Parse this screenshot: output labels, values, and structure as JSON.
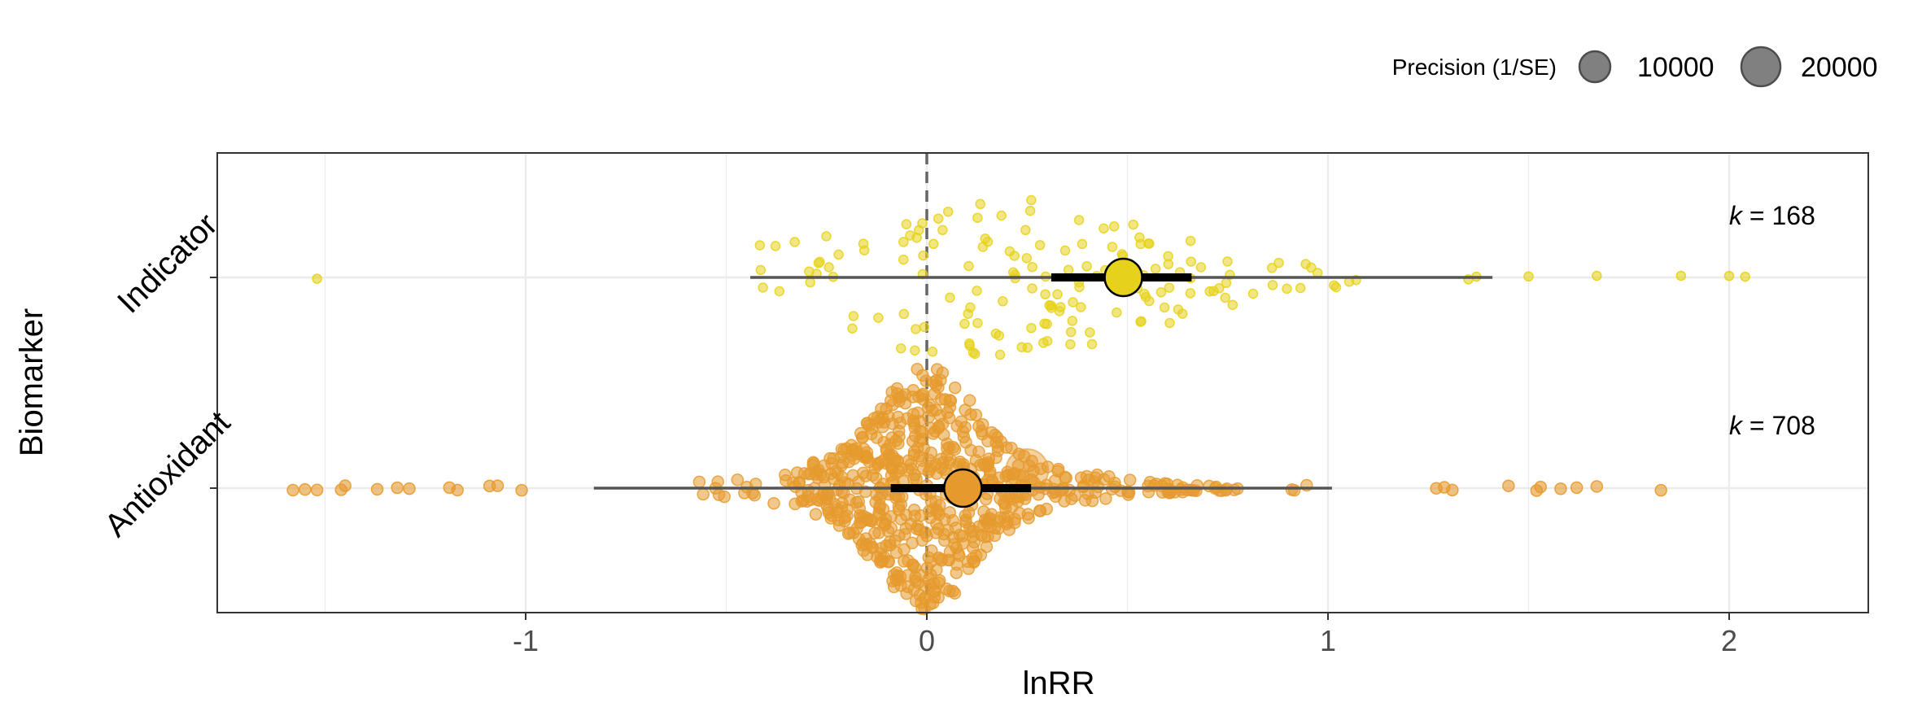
{
  "chart_data": {
    "type": "scatter",
    "title": "",
    "xlabel": "lnRR",
    "ylabel": "Biomarker",
    "xlim": [
      -1.8,
      2.42
    ],
    "x_ticks": [
      -1,
      0,
      1,
      2
    ],
    "x_tick_labels": [
      "-1",
      "0",
      "1",
      "2"
    ],
    "grid": true,
    "reference_line": {
      "x": 0,
      "style": "dashed"
    },
    "legend": {
      "title": "Precision (1/SE)",
      "position": "top-right",
      "entries": [
        {
          "label": "10000",
          "value": 10000
        },
        {
          "label": "20000",
          "value": 20000
        }
      ]
    },
    "categories": [
      "Indicator",
      "Antioxidant"
    ],
    "series": [
      {
        "name": "Indicator",
        "color": "#E6D21A",
        "point_color": "#E6D21A",
        "k_prefix": "k",
        "k_text": " = 168",
        "k": 168,
        "estimate": 0.49,
        "ci": [
          0.31,
          0.66
        ],
        "pi": [
          -0.44,
          1.41
        ],
        "outlier_points": [
          -1.52,
          1.5,
          1.67,
          1.88,
          2.0,
          2.04,
          1.35,
          1.37
        ],
        "dense_range": [
          -0.42,
          1.1
        ],
        "dense_peak": 0.2,
        "dense_spread": 0.55
      },
      {
        "name": "Antioxidant",
        "color": "#E69A2E",
        "point_color": "#E69A2E",
        "k_prefix": "k",
        "k_text": " = 708",
        "k": 708,
        "estimate": 0.09,
        "ci": [
          -0.09,
          0.26
        ],
        "pi": [
          -0.83,
          1.01
        ],
        "outlier_points": [
          -1.58,
          -1.55,
          -1.52,
          -1.46,
          -1.45,
          -1.37,
          -1.32,
          -1.29,
          -1.19,
          -1.17,
          -1.09,
          -1.07,
          -1.01,
          1.27,
          1.29,
          1.31,
          1.45,
          1.52,
          1.53,
          1.58,
          1.62,
          1.67,
          1.83
        ],
        "dense_range": [
          -0.95,
          1.15
        ],
        "dense_peak": 0.0,
        "dense_spread": 0.2,
        "large_point": {
          "x": 0.25,
          "precision": 20000
        }
      }
    ]
  }
}
